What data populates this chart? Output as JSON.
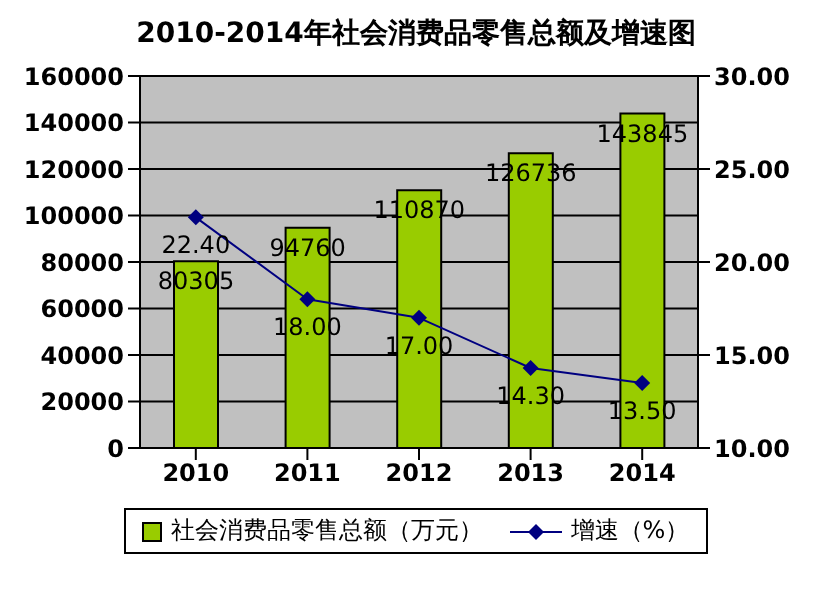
{
  "chart_data": {
    "type": "bar",
    "title": "2010-2014年社会消费品零售总额及增速图",
    "categories": [
      "2010",
      "2011",
      "2012",
      "2013",
      "2014"
    ],
    "series": [
      {
        "name": "社会消费品零售总额（万元）",
        "color": "#99cc00",
        "values": [
          80305,
          94760,
          110870,
          126736,
          143845
        ],
        "value_labels": [
          "80305",
          "94760",
          "110870",
          "126736",
          "143845"
        ]
      },
      {
        "name": "增速（%）",
        "type": "line",
        "axis": "y2",
        "color": "#000080",
        "marker": "diamond",
        "values": [
          22.4,
          18.0,
          17.0,
          14.3,
          13.5
        ],
        "value_labels": [
          "22.40",
          "18.00",
          "17.00",
          "14.30",
          "13.50"
        ]
      }
    ],
    "ylim": [
      0,
      160000
    ],
    "yticks": [
      0,
      20000,
      40000,
      60000,
      80000,
      100000,
      120000,
      140000,
      160000
    ],
    "y2lim": [
      10,
      30
    ],
    "y2ticks": [
      {
        "value": 10,
        "label": "10.00"
      },
      {
        "value": 15,
        "label": "15.00"
      },
      {
        "value": 20,
        "label": "20.00"
      },
      {
        "value": 25,
        "label": "25.00"
      },
      {
        "value": 30,
        "label": "30.00"
      }
    ],
    "grid": "y",
    "legend": "bottom"
  }
}
